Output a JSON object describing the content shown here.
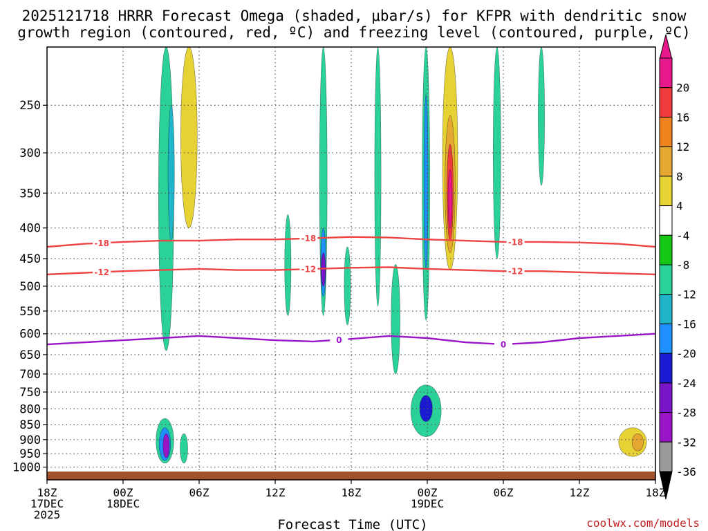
{
  "chart_data": {
    "type": "heatmap",
    "title": "2025121718 HRRR Forecast Omega (shaded, μbar/s) for KFPR with dendritic snow growth region (contoured, red, ºC) and freezing level (contoured, purple, ºC)",
    "title_lines": [
      "2025121718 HRRR Forecast Omega (shaded, μbar/s) for KFPR with dendritic snow",
      "growth region (contoured, red, ºC) and freezing level (contoured, purple, ºC)"
    ],
    "xlabel": "Forecast Time (UTC)",
    "ylabel": "",
    "xlim_hours": [
      0,
      48
    ],
    "ylim_hpa": [
      1000,
      200
    ],
    "x_ticks": [
      {
        "hour": 0,
        "lines": [
          "18Z",
          "17DEC",
          "2025"
        ]
      },
      {
        "hour": 6,
        "lines": [
          "00Z",
          "18DEC"
        ]
      },
      {
        "hour": 12,
        "lines": [
          "06Z"
        ]
      },
      {
        "hour": 18,
        "lines": [
          "12Z"
        ]
      },
      {
        "hour": 24,
        "lines": [
          "18Z"
        ]
      },
      {
        "hour": 30,
        "lines": [
          "00Z",
          "19DEC"
        ]
      },
      {
        "hour": 36,
        "lines": [
          "06Z"
        ]
      },
      {
        "hour": 42,
        "lines": [
          "12Z"
        ]
      },
      {
        "hour": 48,
        "lines": [
          "18Z"
        ]
      }
    ],
    "y_ticks": [
      "250",
      "300",
      "350",
      "400",
      "450",
      "500",
      "550",
      "600",
      "650",
      "700",
      "750",
      "800",
      "850",
      "900",
      "950",
      "1000"
    ],
    "colorbar_ticks": [
      "20",
      "16",
      "12",
      "8",
      "4",
      "-4",
      "-8",
      "-12",
      "-16",
      "-20",
      "-24",
      "-28",
      "-32",
      "-36"
    ],
    "colorbar_colors": [
      "#e8178a",
      "#f03c3c",
      "#f0821e",
      "#e6a833",
      "#e6d232",
      "#ffffff",
      "#16c816",
      "#2ad29a",
      "#20b4c8",
      "#1e90ff",
      "#1a1ad2",
      "#7a14c8",
      "#9a14c8",
      "#9a9a9a"
    ],
    "omega_features": [
      {
        "hour": 9.4,
        "p_top": 200,
        "p_bot": 640,
        "width_h": 1.2,
        "level": -8
      },
      {
        "hour": 9.8,
        "p_top": 250,
        "p_bot": 420,
        "width_h": 0.5,
        "level": -12
      },
      {
        "hour": 9.3,
        "p_top": 830,
        "p_bot": 985,
        "width_h": 1.4,
        "level": -8
      },
      {
        "hour": 9.3,
        "p_top": 860,
        "p_bot": 975,
        "width_h": 0.9,
        "level": -16
      },
      {
        "hour": 9.4,
        "p_top": 880,
        "p_bot": 965,
        "width_h": 0.5,
        "level": -28
      },
      {
        "hour": 10.8,
        "p_top": 880,
        "p_bot": 985,
        "width_h": 0.6,
        "level": -8
      },
      {
        "hour": 11.2,
        "p_top": 200,
        "p_bot": 400,
        "width_h": 1.3,
        "level": 4
      },
      {
        "hour": 21.8,
        "p_top": 200,
        "p_bot": 560,
        "width_h": 0.6,
        "level": -8
      },
      {
        "hour": 21.8,
        "p_top": 400,
        "p_bot": 520,
        "width_h": 0.4,
        "level": -16
      },
      {
        "hour": 21.8,
        "p_top": 440,
        "p_bot": 500,
        "width_h": 0.2,
        "level": -24
      },
      {
        "hour": 19.0,
        "p_top": 380,
        "p_bot": 560,
        "width_h": 0.5,
        "level": -8
      },
      {
        "hour": 23.7,
        "p_top": 430,
        "p_bot": 580,
        "width_h": 0.5,
        "level": -8
      },
      {
        "hour": 26.1,
        "p_top": 200,
        "p_bot": 540,
        "width_h": 0.5,
        "level": -8
      },
      {
        "hour": 27.5,
        "p_top": 460,
        "p_bot": 700,
        "width_h": 0.7,
        "level": -8
      },
      {
        "hour": 29.9,
        "p_top": 200,
        "p_bot": 570,
        "width_h": 0.6,
        "level": -8
      },
      {
        "hour": 29.9,
        "p_top": 240,
        "p_bot": 470,
        "width_h": 0.3,
        "level": -16
      },
      {
        "hour": 29.9,
        "p_top": 730,
        "p_bot": 890,
        "width_h": 2.4,
        "level": -8
      },
      {
        "hour": 29.9,
        "p_top": 760,
        "p_bot": 840,
        "width_h": 1.0,
        "level": -20
      },
      {
        "hour": 35.5,
        "p_top": 200,
        "p_bot": 450,
        "width_h": 0.6,
        "level": -8
      },
      {
        "hour": 39.0,
        "p_top": 200,
        "p_bot": 340,
        "width_h": 0.5,
        "level": -8
      },
      {
        "hour": 31.8,
        "p_top": 200,
        "p_bot": 470,
        "width_h": 1.2,
        "level": 4
      },
      {
        "hour": 31.8,
        "p_top": 260,
        "p_bot": 440,
        "width_h": 0.8,
        "level": 8
      },
      {
        "hour": 31.8,
        "p_top": 290,
        "p_bot": 420,
        "width_h": 0.5,
        "level": 16
      },
      {
        "hour": 31.8,
        "p_top": 320,
        "p_bot": 400,
        "width_h": 0.3,
        "level": 20
      },
      {
        "hour": 46.2,
        "p_top": 860,
        "p_bot": 960,
        "width_h": 2.2,
        "level": 4
      },
      {
        "hour": 46.6,
        "p_top": 880,
        "p_bot": 940,
        "width_h": 0.9,
        "level": 8
      }
    ],
    "contours": [
      {
        "name": "dendritic-top",
        "label": "-18",
        "color": "#ee4444",
        "pressures": [
          430,
          425,
          422,
          420,
          420,
          418,
          418,
          416,
          414,
          415,
          418,
          420,
          422,
          422,
          423,
          425,
          430
        ]
      },
      {
        "name": "dendritic-bottom",
        "label": "-12",
        "color": "#ee4444",
        "pressures": [
          478,
          475,
          472,
          470,
          468,
          470,
          470,
          468,
          466,
          465,
          468,
          470,
          472,
          472,
          474,
          476,
          478
        ]
      },
      {
        "name": "freezing-level",
        "label": "0",
        "color": "#9a14c8",
        "pressures": [
          625,
          620,
          615,
          610,
          605,
          610,
          615,
          618,
          612,
          605,
          610,
          620,
          625,
          620,
          610,
          605,
          600
        ]
      }
    ],
    "surface_band_color": "#a0522d"
  },
  "colors": {
    "frame": "#000000",
    "grid": "#555555"
  },
  "credit": "coolwx.com/models"
}
